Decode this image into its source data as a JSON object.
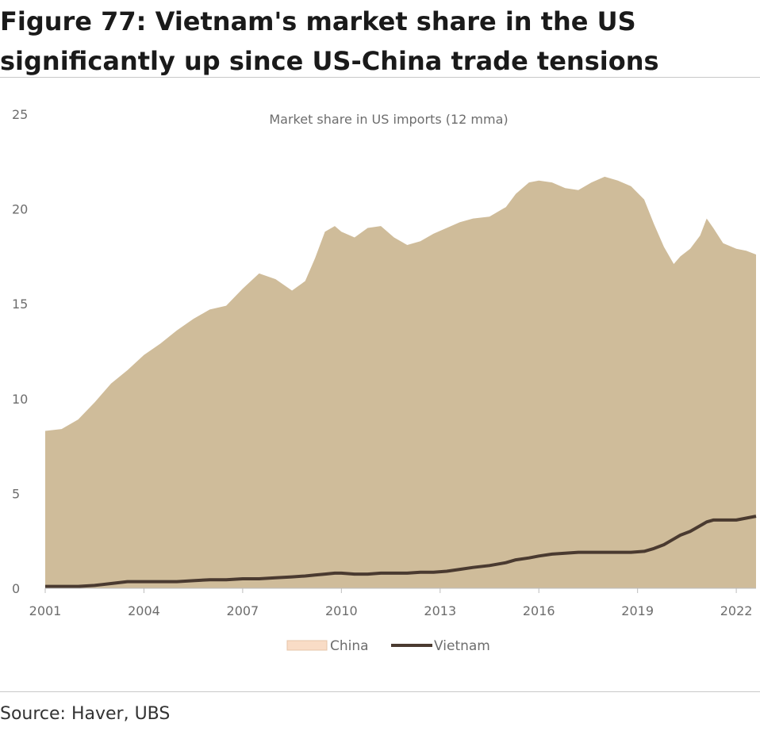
{
  "figure": {
    "title": "Figure 77: Vietnam's market share in the US significantly up since US-China trade tensions",
    "source": "Source: Haver, UBS"
  },
  "colors": {
    "china_fill": "#cfbc9a",
    "china_legend": "#f9dcc6",
    "vietnam_line": "#4a3a30",
    "axis_text": "#6d6d6d"
  },
  "chart_data": {
    "type": "area",
    "title": "Market share in US imports (12 mma)",
    "xlabel": "",
    "ylabel": "",
    "xlim": [
      2001,
      2022.6
    ],
    "ylim": [
      0,
      25
    ],
    "y_ticks": [
      0,
      5,
      10,
      15,
      20,
      25
    ],
    "x_ticks": [
      "2001",
      "2004",
      "2007",
      "2010",
      "2013",
      "2016",
      "2019",
      "2022"
    ],
    "grid": false,
    "legend_position": "bottom",
    "legend": [
      "China",
      "Vietnam"
    ],
    "x": [
      2001.0,
      2001.5,
      2002.0,
      2002.5,
      2003.0,
      2003.5,
      2004.0,
      2004.5,
      2005.0,
      2005.5,
      2006.0,
      2006.5,
      2007.0,
      2007.5,
      2008.0,
      2008.5,
      2008.9,
      2009.2,
      2009.5,
      2009.8,
      2010.0,
      2010.4,
      2010.8,
      2011.2,
      2011.6,
      2012.0,
      2012.4,
      2012.8,
      2013.2,
      2013.6,
      2014.0,
      2014.5,
      2015.0,
      2015.3,
      2015.7,
      2016.0,
      2016.4,
      2016.8,
      2017.2,
      2017.6,
      2018.0,
      2018.4,
      2018.8,
      2019.2,
      2019.5,
      2019.8,
      2020.1,
      2020.3,
      2020.6,
      2020.9,
      2021.1,
      2021.3,
      2021.6,
      2022.0,
      2022.3,
      2022.6
    ],
    "series": [
      {
        "name": "China",
        "type": "area",
        "values": [
          8.3,
          8.4,
          8.9,
          9.8,
          10.8,
          11.5,
          12.3,
          12.9,
          13.6,
          14.2,
          14.7,
          14.9,
          15.8,
          16.6,
          16.3,
          15.7,
          16.2,
          17.4,
          18.8,
          19.1,
          18.8,
          18.5,
          19.0,
          19.1,
          18.5,
          18.1,
          18.3,
          18.7,
          19.0,
          19.3,
          19.5,
          19.6,
          20.1,
          20.8,
          21.4,
          21.5,
          21.4,
          21.1,
          21.0,
          21.4,
          21.7,
          21.5,
          21.2,
          20.5,
          19.2,
          18.0,
          17.1,
          17.5,
          17.9,
          18.6,
          19.5,
          19.0,
          18.2,
          17.9,
          17.8,
          17.6
        ]
      },
      {
        "name": "Vietnam",
        "type": "line",
        "values": [
          0.1,
          0.1,
          0.1,
          0.15,
          0.25,
          0.35,
          0.35,
          0.35,
          0.35,
          0.4,
          0.45,
          0.45,
          0.5,
          0.5,
          0.55,
          0.6,
          0.65,
          0.7,
          0.75,
          0.8,
          0.8,
          0.75,
          0.75,
          0.8,
          0.8,
          0.8,
          0.85,
          0.85,
          0.9,
          1.0,
          1.1,
          1.2,
          1.35,
          1.5,
          1.6,
          1.7,
          1.8,
          1.85,
          1.9,
          1.9,
          1.9,
          1.9,
          1.9,
          1.95,
          2.1,
          2.3,
          2.6,
          2.8,
          3.0,
          3.3,
          3.5,
          3.6,
          3.6,
          3.6,
          3.7,
          3.8
        ]
      }
    ]
  }
}
